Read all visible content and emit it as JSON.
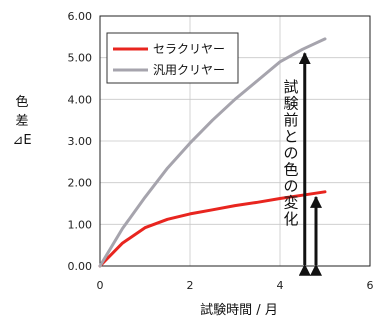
{
  "chart_data": {
    "type": "line",
    "title": "",
    "xlabel": "試験時間 / 月",
    "ylabel_lines": [
      "色",
      "差",
      "⊿E"
    ],
    "xlim": [
      0,
      6
    ],
    "ylim": [
      0,
      6
    ],
    "x_ticks": [
      "0",
      "2",
      "4",
      "6"
    ],
    "y_ticks": [
      "0.00",
      "1.00",
      "2.00",
      "3.00",
      "4.00",
      "5.00",
      "6.00"
    ],
    "grid": true,
    "legend_position": "top-left",
    "series": [
      {
        "name": "セラクリヤー",
        "color": "#e8251f",
        "x": [
          0,
          0.5,
          1.0,
          1.5,
          2.0,
          2.5,
          3.0,
          3.5,
          4.0,
          4.5,
          5.0
        ],
        "y": [
          0,
          0.55,
          0.92,
          1.12,
          1.25,
          1.35,
          1.45,
          1.53,
          1.62,
          1.7,
          1.78
        ]
      },
      {
        "name": "汎用クリヤー",
        "color": "#a6a4ad",
        "x": [
          0,
          0.5,
          1.0,
          1.5,
          2.0,
          2.5,
          3.0,
          3.5,
          4.0,
          4.5,
          5.0
        ],
        "y": [
          0,
          0.9,
          1.65,
          2.35,
          2.95,
          3.5,
          4.0,
          4.45,
          4.9,
          5.2,
          5.45
        ]
      }
    ],
    "annotation": {
      "text": "試験前との色の変化",
      "arrows": [
        {
          "x": 4.55,
          "y_from": 0,
          "y_to": 5.2
        },
        {
          "x": 4.8,
          "y_from": 0,
          "y_to": 1.75
        }
      ]
    }
  }
}
